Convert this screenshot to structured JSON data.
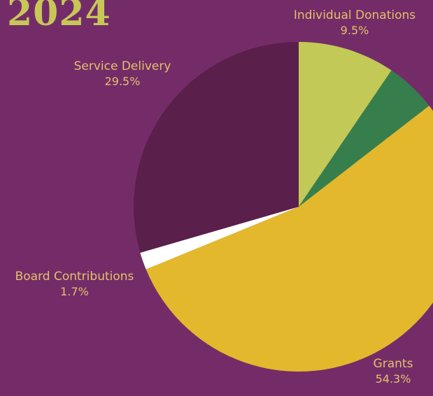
{
  "page_title": "2024",
  "colors": {
    "background": "#742c69",
    "title": "#c7c757",
    "label_text": "#e3c069"
  },
  "chart_data": {
    "type": "pie",
    "start_angle_deg": 0,
    "direction": "clockwise",
    "slices": [
      {
        "label": "Individual Donations",
        "value": 9.5,
        "display": "9.5%",
        "color": "#c2c956"
      },
      {
        "label": "",
        "value": 5.0,
        "display": "",
        "color": "#367f4d"
      },
      {
        "label": "Grants",
        "value": 54.3,
        "display": "54.3%",
        "color": "#e3b82c"
      },
      {
        "label": "Board Contributions",
        "value": 1.7,
        "display": "1.7%",
        "color": "#ffffff"
      },
      {
        "label": "Service Delivery",
        "value": 29.5,
        "display": "29.5%",
        "color": "#5a1f4b"
      }
    ]
  }
}
